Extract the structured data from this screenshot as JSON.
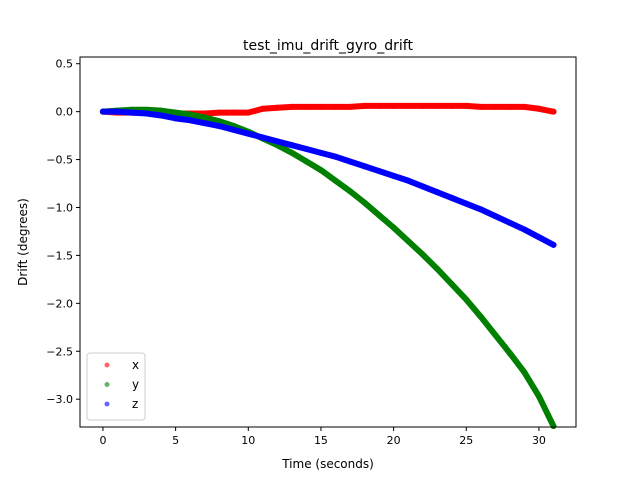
{
  "chart_data": {
    "type": "scatter",
    "title": "test_imu_drift_gyro_drift",
    "xlabel": "Time (seconds)",
    "ylabel": "Drift (degrees)",
    "xlim": [
      -1.58,
      32.55
    ],
    "ylim": [
      -3.29,
      0.57
    ],
    "xticks": [
      0,
      5,
      10,
      15,
      20,
      25,
      30
    ],
    "xtick_labels": [
      "0",
      "5",
      "10",
      "15",
      "20",
      "25",
      "30"
    ],
    "yticks": [
      0.5,
      0.0,
      -0.5,
      -1.0,
      -1.5,
      -2.0,
      -2.5,
      -3.0
    ],
    "ytick_labels": [
      "0.5",
      "0.0",
      "−0.5",
      "−1.0",
      "−1.5",
      "−2.0",
      "−2.5",
      "−3.0"
    ],
    "grid": false,
    "legend_position": "lower-left",
    "x": [
      0,
      1,
      2,
      3,
      4,
      5,
      6,
      7,
      8,
      9,
      10,
      11,
      12,
      13,
      14,
      15,
      16,
      17,
      18,
      19,
      20,
      21,
      22,
      23,
      24,
      25,
      26,
      27,
      28,
      29,
      30,
      31
    ],
    "series": [
      {
        "name": "x",
        "color": "#ff0000",
        "values": [
          0,
          -0.01,
          -0.01,
          -0.01,
          -0.02,
          -0.02,
          -0.02,
          -0.02,
          -0.01,
          -0.01,
          -0.01,
          0.03,
          0.04,
          0.05,
          0.05,
          0.05,
          0.05,
          0.05,
          0.06,
          0.06,
          0.06,
          0.06,
          0.06,
          0.06,
          0.06,
          0.06,
          0.05,
          0.05,
          0.05,
          0.05,
          0.03,
          0.0
        ]
      },
      {
        "name": "y",
        "color": "#008000",
        "values": [
          0,
          0.01,
          0.02,
          0.02,
          0.01,
          -0.01,
          -0.03,
          -0.06,
          -0.1,
          -0.15,
          -0.21,
          -0.28,
          -0.35,
          -0.43,
          -0.52,
          -0.61,
          -0.72,
          -0.83,
          -0.95,
          -1.08,
          -1.21,
          -1.35,
          -1.49,
          -1.64,
          -1.8,
          -1.96,
          -2.14,
          -2.33,
          -2.52,
          -2.72,
          -2.97,
          -3.28
        ]
      },
      {
        "name": "z",
        "color": "#0000ff",
        "values": [
          0,
          0,
          -0.01,
          -0.02,
          -0.04,
          -0.07,
          -0.09,
          -0.12,
          -0.15,
          -0.19,
          -0.23,
          -0.27,
          -0.31,
          -0.35,
          -0.39,
          -0.43,
          -0.47,
          -0.52,
          -0.57,
          -0.62,
          -0.67,
          -0.72,
          -0.78,
          -0.84,
          -0.9,
          -0.96,
          -1.02,
          -1.09,
          -1.16,
          -1.23,
          -1.31,
          -1.39
        ]
      }
    ]
  }
}
